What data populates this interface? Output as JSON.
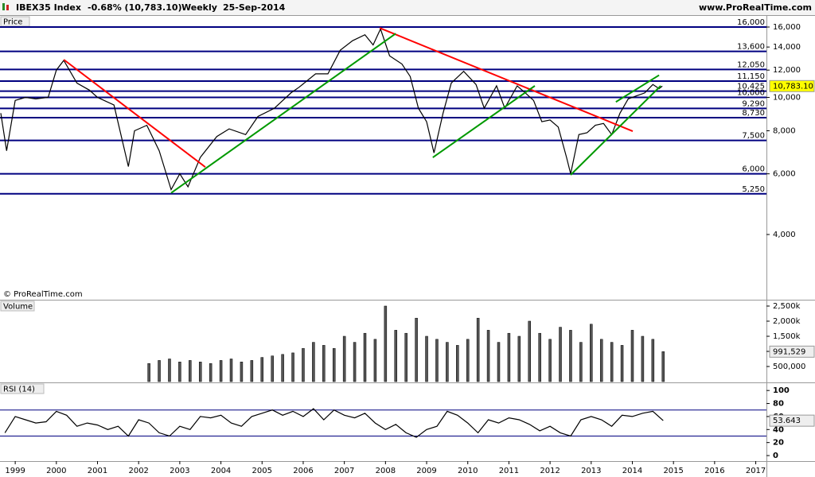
{
  "header": {
    "instrument": "IBEX35 Index",
    "change": "-0.68% (10,783.10)",
    "period": "Weekly",
    "date": "25-Sep-2014",
    "site": "www.ProRealTime.com"
  },
  "chart_data": [
    {
      "type": "line",
      "title": "Price",
      "note": "© ProRealTime.com",
      "log_scale": true,
      "color": "#000000",
      "xlim": [
        1998.63,
        2017.26
      ],
      "ylim": [
        2587,
        16519
      ],
      "yticks": [
        {
          "value": 4000,
          "label": "4,000"
        },
        {
          "value": 6000,
          "label": "6,000"
        },
        {
          "value": 8000,
          "label": "8,000"
        },
        {
          "value": 10000,
          "label": "10,000"
        },
        {
          "value": 12000,
          "label": "12,000"
        },
        {
          "value": 14000,
          "label": "14,000"
        },
        {
          "value": 16000,
          "label": "16,000"
        }
      ],
      "x": [
        1998.65,
        1998.79,
        1999.0,
        1999.25,
        1999.5,
        1999.8,
        2000.0,
        2000.18,
        2000.5,
        2000.8,
        2001.0,
        2001.4,
        2001.75,
        2001.9,
        2002.2,
        2002.5,
        2002.79,
        2003.0,
        2003.2,
        2003.5,
        2003.9,
        2004.2,
        2004.6,
        2004.9,
        2005.3,
        2005.7,
        2005.9,
        2006.3,
        2006.6,
        2006.9,
        2007.2,
        2007.5,
        2007.7,
        2007.88,
        2008.1,
        2008.4,
        2008.6,
        2008.8,
        2009.0,
        2009.18,
        2009.4,
        2009.6,
        2009.9,
        2010.2,
        2010.4,
        2010.7,
        2010.9,
        2011.2,
        2011.4,
        2011.6,
        2011.8,
        2012.0,
        2012.2,
        2012.4,
        2012.5,
        2012.7,
        2012.9,
        2013.1,
        2013.3,
        2013.5,
        2013.7,
        2013.9,
        2014.1,
        2014.3,
        2014.5,
        2014.65,
        2014.73
      ],
      "values": [
        9000,
        7000,
        9800,
        10000,
        9900,
        10000,
        12000,
        12800,
        11000,
        10500,
        10000,
        9500,
        6300,
        8000,
        8300,
        7000,
        5400,
        6000,
        5500,
        6700,
        7700,
        8100,
        7800,
        8800,
        9300,
        10300,
        10700,
        11700,
        11700,
        13700,
        14600,
        15200,
        14200,
        15800,
        13200,
        12500,
        11500,
        9300,
        8500,
        6900,
        9000,
        11000,
        11900,
        10900,
        9300,
        10800,
        9300,
        10800,
        10300,
        9800,
        8500,
        8600,
        8200,
        6700,
        6000,
        7800,
        7900,
        8300,
        8400,
        7800,
        9000,
        9900,
        10100,
        10300,
        10900,
        10600,
        10783.1
      ],
      "level_color": "#000080",
      "levels": [
        {
          "value": 16000,
          "label": "16,000"
        },
        {
          "value": 13600,
          "label": "13,600"
        },
        {
          "value": 12050,
          "label": "12,050"
        },
        {
          "value": 11150,
          "label": "11,150"
        },
        {
          "value": 10425,
          "label": "10,425"
        },
        {
          "value": 10000,
          "label": "10,000"
        },
        {
          "value": 9290,
          "label": "9,290"
        },
        {
          "value": 8730,
          "label": "8,730"
        },
        {
          "value": 7500,
          "label": "7,500"
        },
        {
          "value": 6000,
          "label": "6,000"
        },
        {
          "value": 5250,
          "label": "5,250"
        }
      ],
      "trendlines": [
        {
          "color": "#ff0000",
          "x": [
            2000.18,
            2003.62
          ],
          "y": [
            12870,
            6277
          ]
        },
        {
          "color": "#ff0000",
          "x": [
            2007.86,
            2014.01
          ],
          "y": [
            15900,
            7976
          ]
        },
        {
          "color": "#009900",
          "x": [
            2002.79,
            2008.25
          ],
          "y": [
            5280,
            15320
          ]
        },
        {
          "color": "#009900",
          "x": [
            2009.15,
            2011.63
          ],
          "y": [
            6692,
            10800
          ]
        },
        {
          "color": "#009900",
          "x": [
            2012.5,
            2014.69
          ],
          "y": [
            5957,
            10800
          ]
        },
        {
          "color": "#009900",
          "x": [
            2013.6,
            2014.65
          ],
          "y": [
            9700,
            11600
          ]
        }
      ],
      "last": {
        "value": 10783.1,
        "label": "10,783.10"
      },
      "last_color": "#ffff00"
    },
    {
      "type": "bar",
      "title": "Volume",
      "color": "#000000",
      "xlim": [
        1998.63,
        2017.26
      ],
      "ylim": [
        0,
        2710000
      ],
      "yticks": [
        {
          "value": 500000,
          "label": "500,000"
        },
        {
          "value": 1000000,
          "label": "1,000k"
        },
        {
          "value": 1500000,
          "label": "1,500k"
        },
        {
          "value": 2000000,
          "label": "2,000k"
        },
        {
          "value": 2500000,
          "label": "2,500k"
        }
      ],
      "x": [
        2002.25,
        2002.5,
        2002.75,
        2003.0,
        2003.25,
        2003.5,
        2003.75,
        2004.0,
        2004.25,
        2004.5,
        2004.75,
        2005.0,
        2005.25,
        2005.5,
        2005.75,
        2006.0,
        2006.25,
        2006.5,
        2006.75,
        2007.0,
        2007.25,
        2007.5,
        2007.75,
        2008.0,
        2008.25,
        2008.5,
        2008.75,
        2009.0,
        2009.25,
        2009.5,
        2009.75,
        2010.0,
        2010.25,
        2010.5,
        2010.75,
        2011.0,
        2011.25,
        2011.5,
        2011.75,
        2012.0,
        2012.25,
        2012.5,
        2012.75,
        2013.0,
        2013.25,
        2013.5,
        2013.75,
        2014.0,
        2014.25,
        2014.5,
        2014.75
      ],
      "values": [
        600000,
        700000,
        750000,
        650000,
        700000,
        650000,
        600000,
        700000,
        750000,
        650000,
        700000,
        800000,
        850000,
        900000,
        950000,
        1100000,
        1300000,
        1200000,
        1100000,
        1500000,
        1300000,
        1600000,
        1400000,
        2500000,
        1700000,
        1600000,
        2100000,
        1500000,
        1400000,
        1300000,
        1200000,
        1400000,
        2100000,
        1700000,
        1300000,
        1600000,
        1500000,
        2000000,
        1600000,
        1400000,
        1800000,
        1700000,
        1300000,
        1900000,
        1400000,
        1300000,
        1200000,
        1700000,
        1500000,
        1400000,
        991529
      ],
      "last": {
        "value": 991529,
        "label": "991,529"
      },
      "last_color": "#eeeeee"
    },
    {
      "type": "line",
      "title": "RSI (14)",
      "color": "#000000",
      "xlim": [
        1998.63,
        2017.26
      ],
      "ylim": [
        -8.5,
        110
      ],
      "yticks": [
        0,
        20,
        40,
        60,
        80,
        100
      ],
      "bands": [
        70,
        30
      ],
      "xticks": [
        1999,
        2000,
        2001,
        2002,
        2003,
        2004,
        2005,
        2006,
        2007,
        2008,
        2009,
        2010,
        2011,
        2012,
        2013,
        2014,
        2015,
        2016,
        2017
      ],
      "x": [
        1998.75,
        1999.0,
        1999.25,
        1999.5,
        1999.75,
        2000.0,
        2000.25,
        2000.5,
        2000.75,
        2001.0,
        2001.25,
        2001.5,
        2001.75,
        2002.0,
        2002.25,
        2002.5,
        2002.75,
        2003.0,
        2003.25,
        2003.5,
        2003.75,
        2004.0,
        2004.25,
        2004.5,
        2004.75,
        2005.0,
        2005.25,
        2005.5,
        2005.75,
        2006.0,
        2006.25,
        2006.5,
        2006.75,
        2007.0,
        2007.25,
        2007.5,
        2007.75,
        2008.0,
        2008.25,
        2008.5,
        2008.75,
        2009.0,
        2009.25,
        2009.5,
        2009.75,
        2010.0,
        2010.25,
        2010.5,
        2010.75,
        2011.0,
        2011.25,
        2011.5,
        2011.75,
        2012.0,
        2012.25,
        2012.5,
        2012.75,
        2013.0,
        2013.25,
        2013.5,
        2013.75,
        2014.0,
        2014.25,
        2014.5,
        2014.75
      ],
      "values": [
        35,
        60,
        55,
        50,
        52,
        68,
        62,
        45,
        50,
        47,
        40,
        45,
        30,
        55,
        50,
        35,
        30,
        45,
        40,
        60,
        58,
        62,
        50,
        45,
        60,
        65,
        70,
        62,
        68,
        60,
        72,
        55,
        70,
        62,
        58,
        65,
        50,
        40,
        48,
        35,
        28,
        40,
        45,
        68,
        62,
        50,
        35,
        55,
        50,
        58,
        55,
        48,
        38,
        45,
        35,
        30,
        55,
        60,
        55,
        45,
        62,
        60,
        65,
        68,
        53.643
      ],
      "last": 53.643,
      "last_color": "#eeeeee"
    }
  ]
}
